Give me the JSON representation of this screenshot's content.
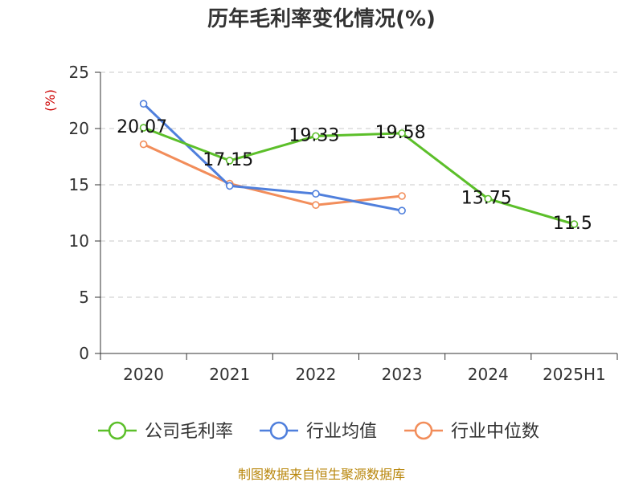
{
  "chart_data": {
    "type": "line",
    "title": "历年毛利率变化情况(%)",
    "ylabel": "(%)",
    "xlabel": "",
    "categories": [
      "2020",
      "2021",
      "2022",
      "2023",
      "2024",
      "2025H1"
    ],
    "ylim": [
      0,
      25
    ],
    "yticks": [
      0,
      5,
      10,
      15,
      20,
      25
    ],
    "grid": true,
    "legend_position": "bottom",
    "series": [
      {
        "name": "公司毛利率",
        "color": "#5cbf2a",
        "values": [
          20.07,
          17.15,
          19.33,
          19.58,
          13.75,
          11.5
        ],
        "labels": [
          "20.07",
          "17.15",
          "19.33",
          "19.58",
          "13.75",
          "11.5"
        ]
      },
      {
        "name": "行业均值",
        "color": "#4f7fdc",
        "values": [
          22.2,
          14.9,
          14.2,
          12.7,
          null,
          null
        ]
      },
      {
        "name": "行业中位数",
        "color": "#f28d5a",
        "values": [
          18.6,
          15.1,
          13.2,
          14.0,
          null,
          null
        ]
      }
    ]
  },
  "source": "制图数据来自恒生聚源数据库"
}
